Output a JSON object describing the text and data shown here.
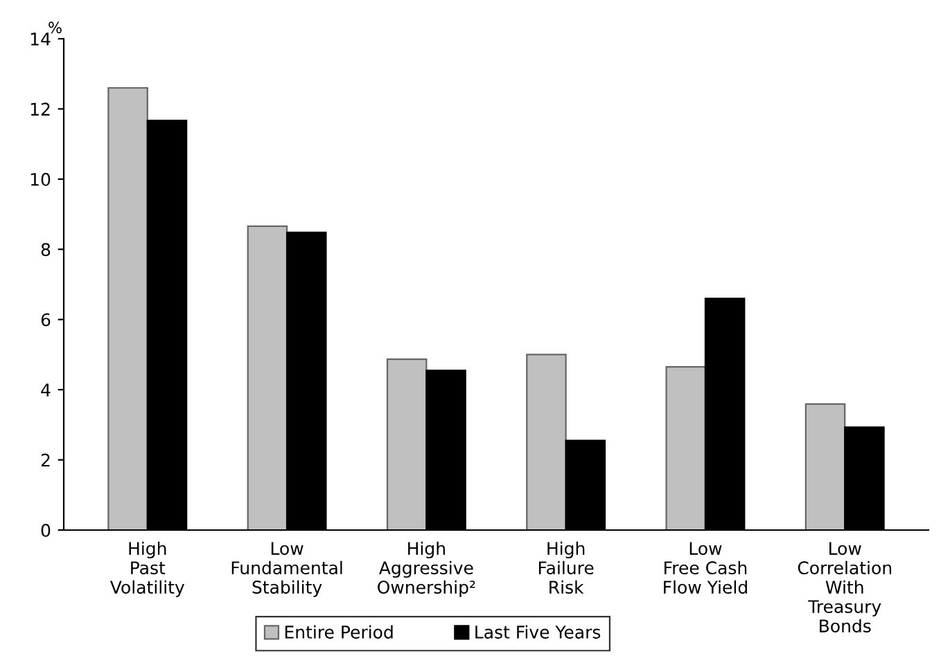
{
  "chart_data": {
    "type": "bar",
    "categories": [
      "High\nPast\nVolatility",
      "Low\nFundamental\nStability",
      "High\nAggressive\nOwnership²",
      "High\nFailure\nRisk",
      "Low\nFree Cash\nFlow Yield",
      "Low\nCorrelation\nWith\nTreasury\nBonds"
    ],
    "series": [
      {
        "name": "Entire Period",
        "color": "#c0c0c0",
        "values": [
          12.6,
          8.66,
          4.87,
          5.0,
          4.65,
          3.59
        ]
      },
      {
        "name": "Last Five Years",
        "color": "#000000",
        "values": [
          11.67,
          8.48,
          4.55,
          2.55,
          6.6,
          2.93
        ]
      }
    ],
    "ylabel": "%",
    "ylim": [
      0,
      14
    ],
    "yticks": [
      0,
      2,
      4,
      6,
      8,
      10,
      12,
      14
    ],
    "grid": false,
    "legend": "bottom"
  }
}
